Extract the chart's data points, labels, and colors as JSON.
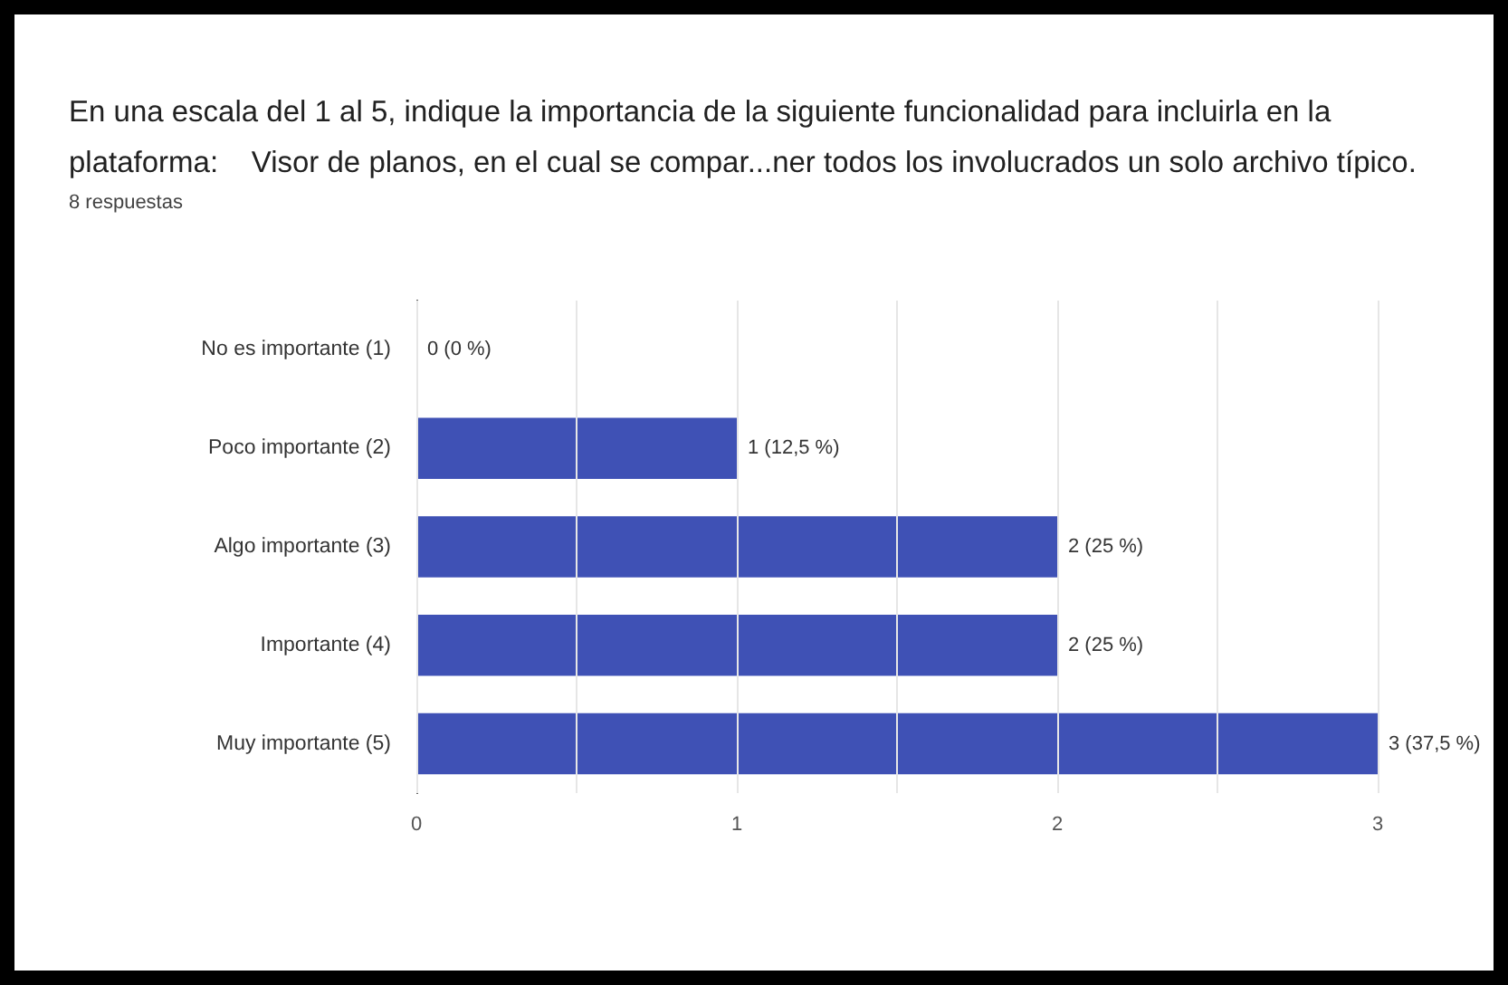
{
  "chart_data": {
    "type": "bar",
    "orientation": "horizontal",
    "title": "En una escala del 1 al 5, indique la importancia de la siguiente funcionalidad para incluirla en la plataforma:    Visor de planos, en el cual se compar...ner todos los involucrados un solo archivo típico.",
    "subtitle": "8 respuestas",
    "categories": [
      "No es importante (1)",
      "Poco importante (2)",
      "Algo importante (3)",
      "Importante (4)",
      "Muy importante (5)"
    ],
    "values": [
      0,
      1,
      2,
      2,
      3
    ],
    "value_labels": [
      "0 (0 %)",
      "1 (12,5 %)",
      "2 (25 %)",
      "2 (25 %)",
      "3 (37,5 %)"
    ],
    "color": "#3f51b5",
    "xlim": [
      0,
      3
    ],
    "xticks": [
      0,
      {
        "value": 0.5,
        "label": null
      },
      1,
      {
        "value": 1.5,
        "label": null
      },
      2,
      {
        "value": 2.5,
        "label": null
      },
      3
    ],
    "grid": "x"
  }
}
